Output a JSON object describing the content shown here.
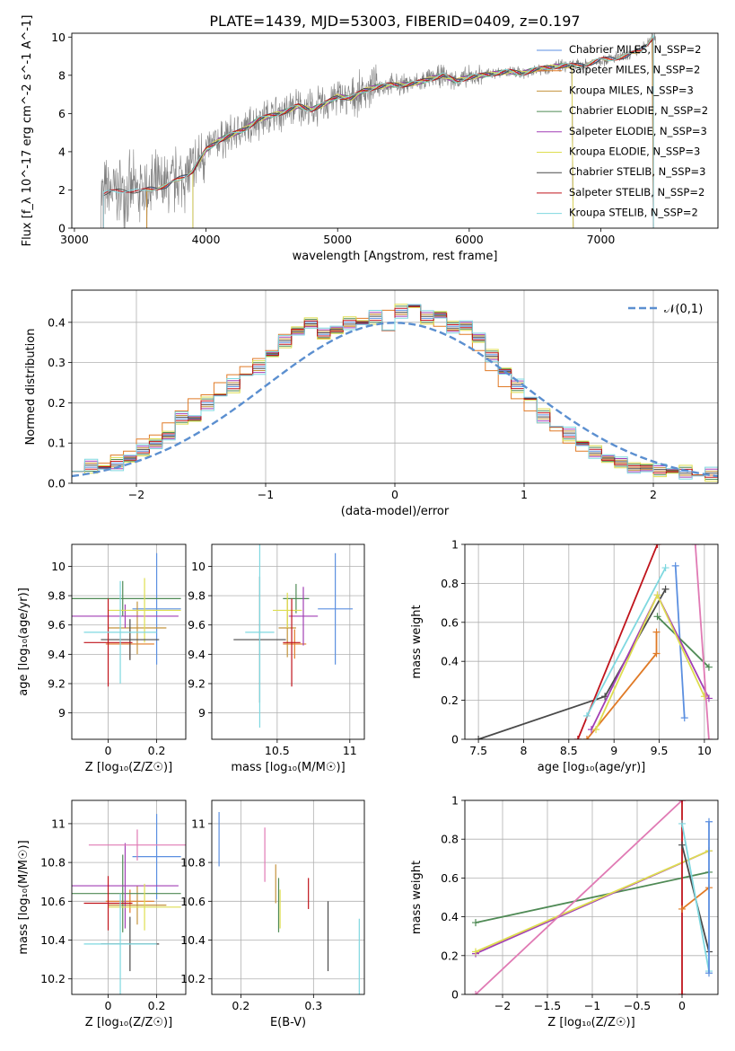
{
  "title": "PLATE=1439, MJD=53003, FIBERID=0409, z=0.197",
  "colors": {
    "Chabrier MILES": "#5b8fe0",
    "Salpeter MILES": "#e07a26",
    "Kroupa MILES": "#c4933c",
    "Chabrier ELODIE": "#4f8a55",
    "Salpeter ELODIE": "#a23fb5",
    "Kroupa ELODIE": "#dede50",
    "Chabrier STELIB": "#4a4a4a",
    "Salpeter STELIB": "#c0141c",
    "Kroupa STELIB": "#7fd8e0",
    "Model pink": "#e07ab4",
    "Data": "#808080",
    "Normal": "#5b8fd0"
  },
  "chart_data": [
    {
      "type": "line",
      "xlabel": "wavelength [Angstrom, rest frame]",
      "ylabel": "Flux [f_λ 10^-17 erg cm^-2 s^-1 A^-1]",
      "xlim": [
        2980,
        7890
      ],
      "ylim": [
        0,
        10.2
      ],
      "xticks": [
        3000,
        4000,
        5000,
        6000,
        7000
      ],
      "yticks": [
        0,
        2,
        4,
        6,
        8,
        10
      ],
      "grid": false,
      "legend_position": "top-right",
      "legend": [
        {
          "label": "Chabrier MILES, N_SSP=2",
          "series": "Chabrier MILES"
        },
        {
          "label": "Salpeter MILES, N_SSP=2",
          "series": "Salpeter MILES"
        },
        {
          "label": "Kroupa MILES, N_SSP=3",
          "series": "Kroupa MILES"
        },
        {
          "label": "Chabrier ELODIE, N_SSP=2",
          "series": "Chabrier ELODIE"
        },
        {
          "label": "Salpeter ELODIE, N_SSP=3",
          "series": "Salpeter ELODIE"
        },
        {
          "label": "Kroupa ELODIE, N_SSP=3",
          "series": "Kroupa ELODIE"
        },
        {
          "label": "Chabrier STELIB, N_SSP=3",
          "series": "Chabrier STELIB"
        },
        {
          "label": "Salpeter STELIB, N_SSP=2",
          "series": "Salpeter STELIB"
        },
        {
          "label": "Kroupa STELIB, N_SSP=2",
          "series": "Kroupa STELIB"
        }
      ],
      "model_x": [
        3200,
        3300,
        3400,
        3500,
        3600,
        3700,
        3800,
        3900,
        4000,
        4100,
        4200,
        4300,
        4400,
        4500,
        4600,
        4700,
        4800,
        4900,
        5000,
        5100,
        5200,
        5300,
        5400,
        5500,
        5600,
        5700,
        5800,
        5900,
        6000,
        6100,
        6200,
        6300,
        6400,
        6500,
        6600,
        6700,
        6800,
        6900,
        7000,
        7100,
        7200,
        7300,
        7400,
        7500
      ],
      "model_y": [
        1.8,
        1.9,
        2.0,
        1.9,
        2.1,
        2.2,
        2.6,
        3.0,
        4.1,
        4.6,
        4.9,
        5.2,
        5.7,
        5.9,
        6.1,
        6.4,
        6.2,
        6.5,
        6.9,
        6.8,
        7.2,
        7.4,
        7.5,
        7.5,
        7.6,
        7.8,
        8.0,
        7.7,
        7.9,
        8.0,
        8.1,
        8.2,
        8.1,
        8.3,
        8.4,
        8.5,
        8.5,
        8.6,
        8.8,
        8.9,
        9.0,
        9.3,
        10.0,
        9.6
      ],
      "model_start": {
        "Chabrier MILES": 3550,
        "Salpeter MILES": 3550,
        "Kroupa MILES": 3550,
        "Chabrier ELODIE": 3900,
        "Salpeter ELODIE": 3900,
        "Kroupa ELODIE": 3900,
        "Chabrier STELIB": 3220,
        "Salpeter STELIB": 3220,
        "Kroupa STELIB": 3220
      },
      "model_end": {
        "Chabrier MILES": 7400,
        "Salpeter MILES": 7400,
        "Kroupa MILES": 7400,
        "Chabrier ELODIE": 6790,
        "Salpeter ELODIE": 6790,
        "Kroupa ELODIE": 6790,
        "Chabrier STELIB": 7400,
        "Salpeter STELIB": 7400,
        "Kroupa STELIB": 7400
      }
    },
    {
      "type": "histogram",
      "xlabel": "(data-model)/error",
      "ylabel": "Normed distribution",
      "xlim": [
        -2.5,
        2.5
      ],
      "ylim": [
        0,
        0.48
      ],
      "xticks": [
        -2,
        -1,
        0,
        1,
        2
      ],
      "yticks": [
        0.0,
        0.1,
        0.2,
        0.3,
        0.4
      ],
      "grid": true,
      "legend_position": "top-right",
      "normal_label": "𝒩(0,1)",
      "bin_edges_start": -2.5,
      "bin_width": 0.1,
      "series_values": {
        "Chabrier MILES": [
          0.03,
          0.04,
          0.04,
          0.05,
          0.06,
          0.08,
          0.1,
          0.12,
          0.16,
          0.16,
          0.2,
          0.22,
          0.24,
          0.27,
          0.29,
          0.32,
          0.35,
          0.38,
          0.4,
          0.37,
          0.38,
          0.4,
          0.4,
          0.41,
          0.38,
          0.43,
          0.44,
          0.41,
          0.42,
          0.39,
          0.39,
          0.36,
          0.32,
          0.28,
          0.24,
          0.21,
          0.17,
          0.14,
          0.12,
          0.1,
          0.08,
          0.06,
          0.05,
          0.04,
          0.04,
          0.03,
          0.03,
          0.03,
          0.02,
          0.02
        ],
        "Salpeter MILES": [
          0.03,
          0.05,
          0.05,
          0.07,
          0.08,
          0.11,
          0.12,
          0.15,
          0.18,
          0.21,
          0.22,
          0.25,
          0.27,
          0.29,
          0.31,
          0.33,
          0.37,
          0.38,
          0.39,
          0.36,
          0.38,
          0.39,
          0.41,
          0.42,
          0.43,
          0.42,
          0.44,
          0.4,
          0.39,
          0.38,
          0.37,
          0.33,
          0.28,
          0.24,
          0.21,
          0.18,
          0.15,
          0.13,
          0.1,
          0.08,
          0.07,
          0.06,
          0.05,
          0.04,
          0.04,
          0.03,
          0.03,
          0.02,
          0.02,
          0.02
        ]
      },
      "series_shift": {
        "Kroupa MILES": 0.01,
        "Chabrier ELODIE": -0.01,
        "Salpeter ELODIE": 0.015,
        "Kroupa ELODIE": -0.015,
        "Chabrier STELIB": 0.005,
        "Salpeter STELIB": -0.005,
        "Kroupa STELIB": 0.02
      },
      "normal_x": [
        -2.5,
        -2.0,
        -1.5,
        -1.0,
        -0.5,
        0.0,
        0.5,
        1.0,
        1.5,
        2.0,
        2.5
      ],
      "normal_y": [
        0.0175,
        0.054,
        0.1295,
        0.242,
        0.352,
        0.399,
        0.352,
        0.242,
        0.1295,
        0.054,
        0.0175
      ]
    },
    {
      "type": "errorbar",
      "xlabel": "Z [log₁₀(Z/Z☉)]",
      "ylabel": "age  [log₁₀(age/yr)]",
      "xlim": [
        -0.15,
        0.32
      ],
      "ylim": [
        8.82,
        10.15
      ],
      "xticks": [
        0.0,
        0.2
      ],
      "yticks": [
        9.0,
        9.2,
        9.4,
        9.6,
        9.8,
        10.0
      ],
      "grid": true,
      "points": [
        {
          "series": "Chabrier MILES",
          "x": 0.2,
          "xerr": 0.1,
          "y": 9.71,
          "yerr": 0.38
        },
        {
          "series": "Salpeter MILES",
          "x": 0.09,
          "xerr": 0.1,
          "y": 9.47,
          "yerr": 0.1
        },
        {
          "series": "Kroupa MILES",
          "x": 0.12,
          "xerr": 0.12,
          "y": 9.58,
          "yerr": 0.18
        },
        {
          "series": "Chabrier ELODIE",
          "x": 0.06,
          "xerr": 0.24,
          "y": 9.78,
          "yerr": 0.12
        },
        {
          "series": "Salpeter ELODIE",
          "x": 0.07,
          "xerr": 0.22,
          "y": 9.66,
          "yerr": 0.08
        },
        {
          "series": "Kroupa ELODIE",
          "x": 0.15,
          "xerr": 0.15,
          "y": 9.7,
          "yerr": 0.22
        },
        {
          "series": "Chabrier STELIB",
          "x": 0.09,
          "xerr": 0.12,
          "y": 9.5,
          "yerr": 0.14
        },
        {
          "series": "Salpeter STELIB",
          "x": 0.0,
          "xerr": 0.1,
          "y": 9.48,
          "yerr": 0.3
        },
        {
          "series": "Kroupa STELIB",
          "x": 0.05,
          "xerr": 0.15,
          "y": 9.55,
          "yerr": 0.35
        }
      ]
    },
    {
      "type": "errorbar",
      "xlabel": "mass [log₁₀(M/M☉)]",
      "ylabel": "",
      "xlim": [
        10.05,
        11.1
      ],
      "ylim": [
        8.82,
        10.15
      ],
      "xticks": [
        10.5,
        11.0
      ],
      "yticks": [
        9.0,
        9.2,
        9.4,
        9.6,
        9.8,
        10.0
      ],
      "grid": true,
      "points": [
        {
          "series": "Chabrier MILES",
          "x": 10.9,
          "xerr": 0.12,
          "y": 9.71,
          "yerr": 0.38
        },
        {
          "series": "Salpeter MILES",
          "x": 10.62,
          "xerr": 0.08,
          "y": 9.47,
          "yerr": 0.1
        },
        {
          "series": "Kroupa MILES",
          "x": 10.57,
          "xerr": 0.06,
          "y": 9.58,
          "yerr": 0.2
        },
        {
          "series": "Chabrier ELODIE",
          "x": 10.63,
          "xerr": 0.09,
          "y": 9.78,
          "yerr": 0.1
        },
        {
          "series": "Salpeter ELODIE",
          "x": 10.68,
          "xerr": 0.1,
          "y": 9.66,
          "yerr": 0.2
        },
        {
          "series": "Kroupa ELODIE",
          "x": 10.57,
          "xerr": 0.1,
          "y": 9.7,
          "yerr": 0.12
        },
        {
          "series": "Chabrier STELIB",
          "x": 10.38,
          "xerr": 0.18,
          "y": 9.5,
          "yerr": 0.43
        },
        {
          "series": "Salpeter STELIB",
          "x": 10.6,
          "xerr": 0.06,
          "y": 9.48,
          "yerr": 0.3
        },
        {
          "series": "Kroupa STELIB",
          "x": 10.38,
          "xerr": 0.1,
          "y": 9.55,
          "yerr": 0.65
        }
      ]
    },
    {
      "type": "line",
      "xlabel": "age  [log₁₀(age/yr)]",
      "ylabel": "mass weight",
      "xlim": [
        7.35,
        10.15
      ],
      "ylim": [
        0,
        1.0
      ],
      "xticks": [
        7.5,
        8.0,
        8.5,
        9.0,
        9.5,
        10.0
      ],
      "yticks": [
        0.0,
        0.2,
        0.4,
        0.6,
        0.8,
        1.0
      ],
      "grid": true,
      "series": [
        {
          "color": "Chabrier STELIB",
          "points": [
            [
              7.5,
              0.0
            ],
            [
              8.9,
              0.22
            ],
            [
              9.57,
              0.77
            ]
          ]
        },
        {
          "color": "Salpeter STELIB",
          "points": [
            [
              8.6,
              0.0
            ],
            [
              9.48,
              1.0
            ]
          ]
        },
        {
          "color": "Kroupa STELIB",
          "points": [
            [
              8.7,
              0.12
            ],
            [
              9.57,
              0.88
            ]
          ]
        },
        {
          "color": "Chabrier MILES",
          "points": [
            [
              9.68,
              0.89
            ],
            [
              9.78,
              0.11
            ]
          ]
        },
        {
          "color": "Salpeter MILES",
          "points": [
            [
              8.7,
              0.0
            ],
            [
              9.47,
              0.44
            ],
            [
              9.47,
              0.55
            ]
          ]
        },
        {
          "color": "Chabrier ELODIE",
          "points": [
            [
              9.48,
              0.63
            ],
            [
              10.05,
              0.37
            ]
          ]
        },
        {
          "color": "Salpeter ELODIE",
          "points": [
            [
              8.75,
              0.05
            ],
            [
              9.48,
              0.74
            ],
            [
              10.05,
              0.21
            ]
          ]
        },
        {
          "color": "Kroupa ELODIE",
          "points": [
            [
              8.8,
              0.05
            ],
            [
              9.48,
              0.74
            ],
            [
              10.0,
              0.22
            ]
          ]
        },
        {
          "color": "Model pink",
          "points": [
            [
              9.9,
              1.0
            ],
            [
              10.05,
              0.0
            ]
          ]
        }
      ]
    },
    {
      "type": "errorbar",
      "xlabel": "Z [log₁₀(Z/Z☉)]",
      "ylabel": "mass [log₁₀(M/M☉)]",
      "xlim": [
        -0.15,
        0.32
      ],
      "ylim": [
        10.12,
        11.12
      ],
      "xticks": [
        0.0,
        0.2
      ],
      "yticks": [
        10.2,
        10.4,
        10.6,
        10.8,
        11.0
      ],
      "grid": true,
      "points": [
        {
          "series": "Chabrier MILES",
          "x": 0.2,
          "xerr": 0.1,
          "y": 10.83,
          "yerr": 0.22
        },
        {
          "series": "Salpeter MILES",
          "x": 0.09,
          "xerr": 0.1,
          "y": 10.6,
          "yerr": 0.06
        },
        {
          "series": "Kroupa MILES",
          "x": 0.12,
          "xerr": 0.12,
          "y": 10.58,
          "yerr": 0.1
        },
        {
          "series": "Chabrier ELODIE",
          "x": 0.06,
          "xerr": 0.24,
          "y": 10.64,
          "yerr": 0.2
        },
        {
          "series": "Salpeter ELODIE",
          "x": 0.07,
          "xerr": 0.22,
          "y": 10.68,
          "yerr": 0.22
        },
        {
          "series": "Kroupa ELODIE",
          "x": 0.15,
          "xerr": 0.15,
          "y": 10.57,
          "yerr": 0.12
        },
        {
          "series": "Chabrier STELIB",
          "x": 0.09,
          "xerr": 0.12,
          "y": 10.38,
          "yerr": 0.14
        },
        {
          "series": "Salpeter STELIB",
          "x": 0.0,
          "xerr": 0.1,
          "y": 10.59,
          "yerr": 0.14
        },
        {
          "series": "Kroupa STELIB",
          "x": 0.05,
          "xerr": 0.15,
          "y": 10.38,
          "yerr": 0.26
        },
        {
          "series": "Model pink",
          "x": 0.12,
          "xerr": 0.2,
          "y": 10.89,
          "yerr": 0.08
        }
      ]
    },
    {
      "type": "errorbar",
      "xlabel": "E(B-V)",
      "ylabel": "",
      "xlim": [
        0.16,
        0.37
      ],
      "ylim": [
        10.12,
        11.12
      ],
      "xticks": [
        0.2,
        0.3
      ],
      "yticks": [
        10.2,
        10.4,
        10.6,
        10.8,
        11.0
      ],
      "grid": true,
      "points": [
        {
          "series": "Chabrier MILES",
          "x": 0.17,
          "y": 10.92,
          "yerr": 0.14
        },
        {
          "series": "Model pink",
          "x": 0.233,
          "y": 10.84,
          "yerr": 0.14
        },
        {
          "series": "Kroupa MILES",
          "x": 0.248,
          "y": 10.69,
          "yerr": 0.1
        },
        {
          "series": "Chabrier ELODIE",
          "x": 0.252,
          "y": 10.58,
          "yerr": 0.14
        },
        {
          "series": "Kroupa ELODIE",
          "x": 0.254,
          "y": 10.56,
          "yerr": 0.1
        },
        {
          "series": "Salpeter STELIB",
          "x": 0.293,
          "y": 10.64,
          "yerr": 0.08
        },
        {
          "series": "Chabrier STELIB",
          "x": 0.32,
          "y": 10.42,
          "yerr": 0.18
        },
        {
          "series": "Kroupa STELIB",
          "x": 0.363,
          "y": 10.31,
          "yerr": 0.2
        }
      ]
    },
    {
      "type": "line",
      "xlabel": "Z [log₁₀(Z/Z☉)]",
      "ylabel": "mass weight",
      "xlim": [
        -2.42,
        0.4
      ],
      "ylim": [
        0,
        1.0
      ],
      "xticks": [
        -2.0,
        -1.5,
        -1.0,
        -0.5,
        0.0
      ],
      "yticks": [
        0.0,
        0.2,
        0.4,
        0.6,
        0.8,
        1.0
      ],
      "grid": true,
      "series": [
        {
          "color": "Chabrier ELODIE",
          "points": [
            [
              -2.3,
              0.37
            ],
            [
              0.3,
              0.63
            ]
          ]
        },
        {
          "color": "Salpeter ELODIE",
          "points": [
            [
              -2.3,
              0.21
            ],
            [
              0.3,
              0.74
            ]
          ]
        },
        {
          "color": "Kroupa ELODIE",
          "points": [
            [
              -2.3,
              0.22
            ],
            [
              0.3,
              0.74
            ]
          ]
        },
        {
          "color": "Model pink",
          "points": [
            [
              -2.3,
              0.0
            ],
            [
              0.0,
              1.0
            ]
          ]
        },
        {
          "color": "Salpeter STELIB",
          "points": [
            [
              0.0,
              0.0
            ],
            [
              0.0,
              1.0
            ]
          ]
        },
        {
          "color": "Salpeter MILES",
          "points": [
            [
              0.0,
              0.44
            ],
            [
              0.3,
              0.55
            ]
          ]
        },
        {
          "color": "Chabrier STELIB",
          "points": [
            [
              0.0,
              0.77
            ],
            [
              0.3,
              0.22
            ]
          ]
        },
        {
          "color": "Kroupa STELIB",
          "points": [
            [
              0.0,
              0.88
            ],
            [
              0.3,
              0.12
            ]
          ]
        },
        {
          "color": "Chabrier MILES",
          "points": [
            [
              0.3,
              0.89
            ],
            [
              0.3,
              0.11
            ]
          ]
        }
      ]
    }
  ]
}
